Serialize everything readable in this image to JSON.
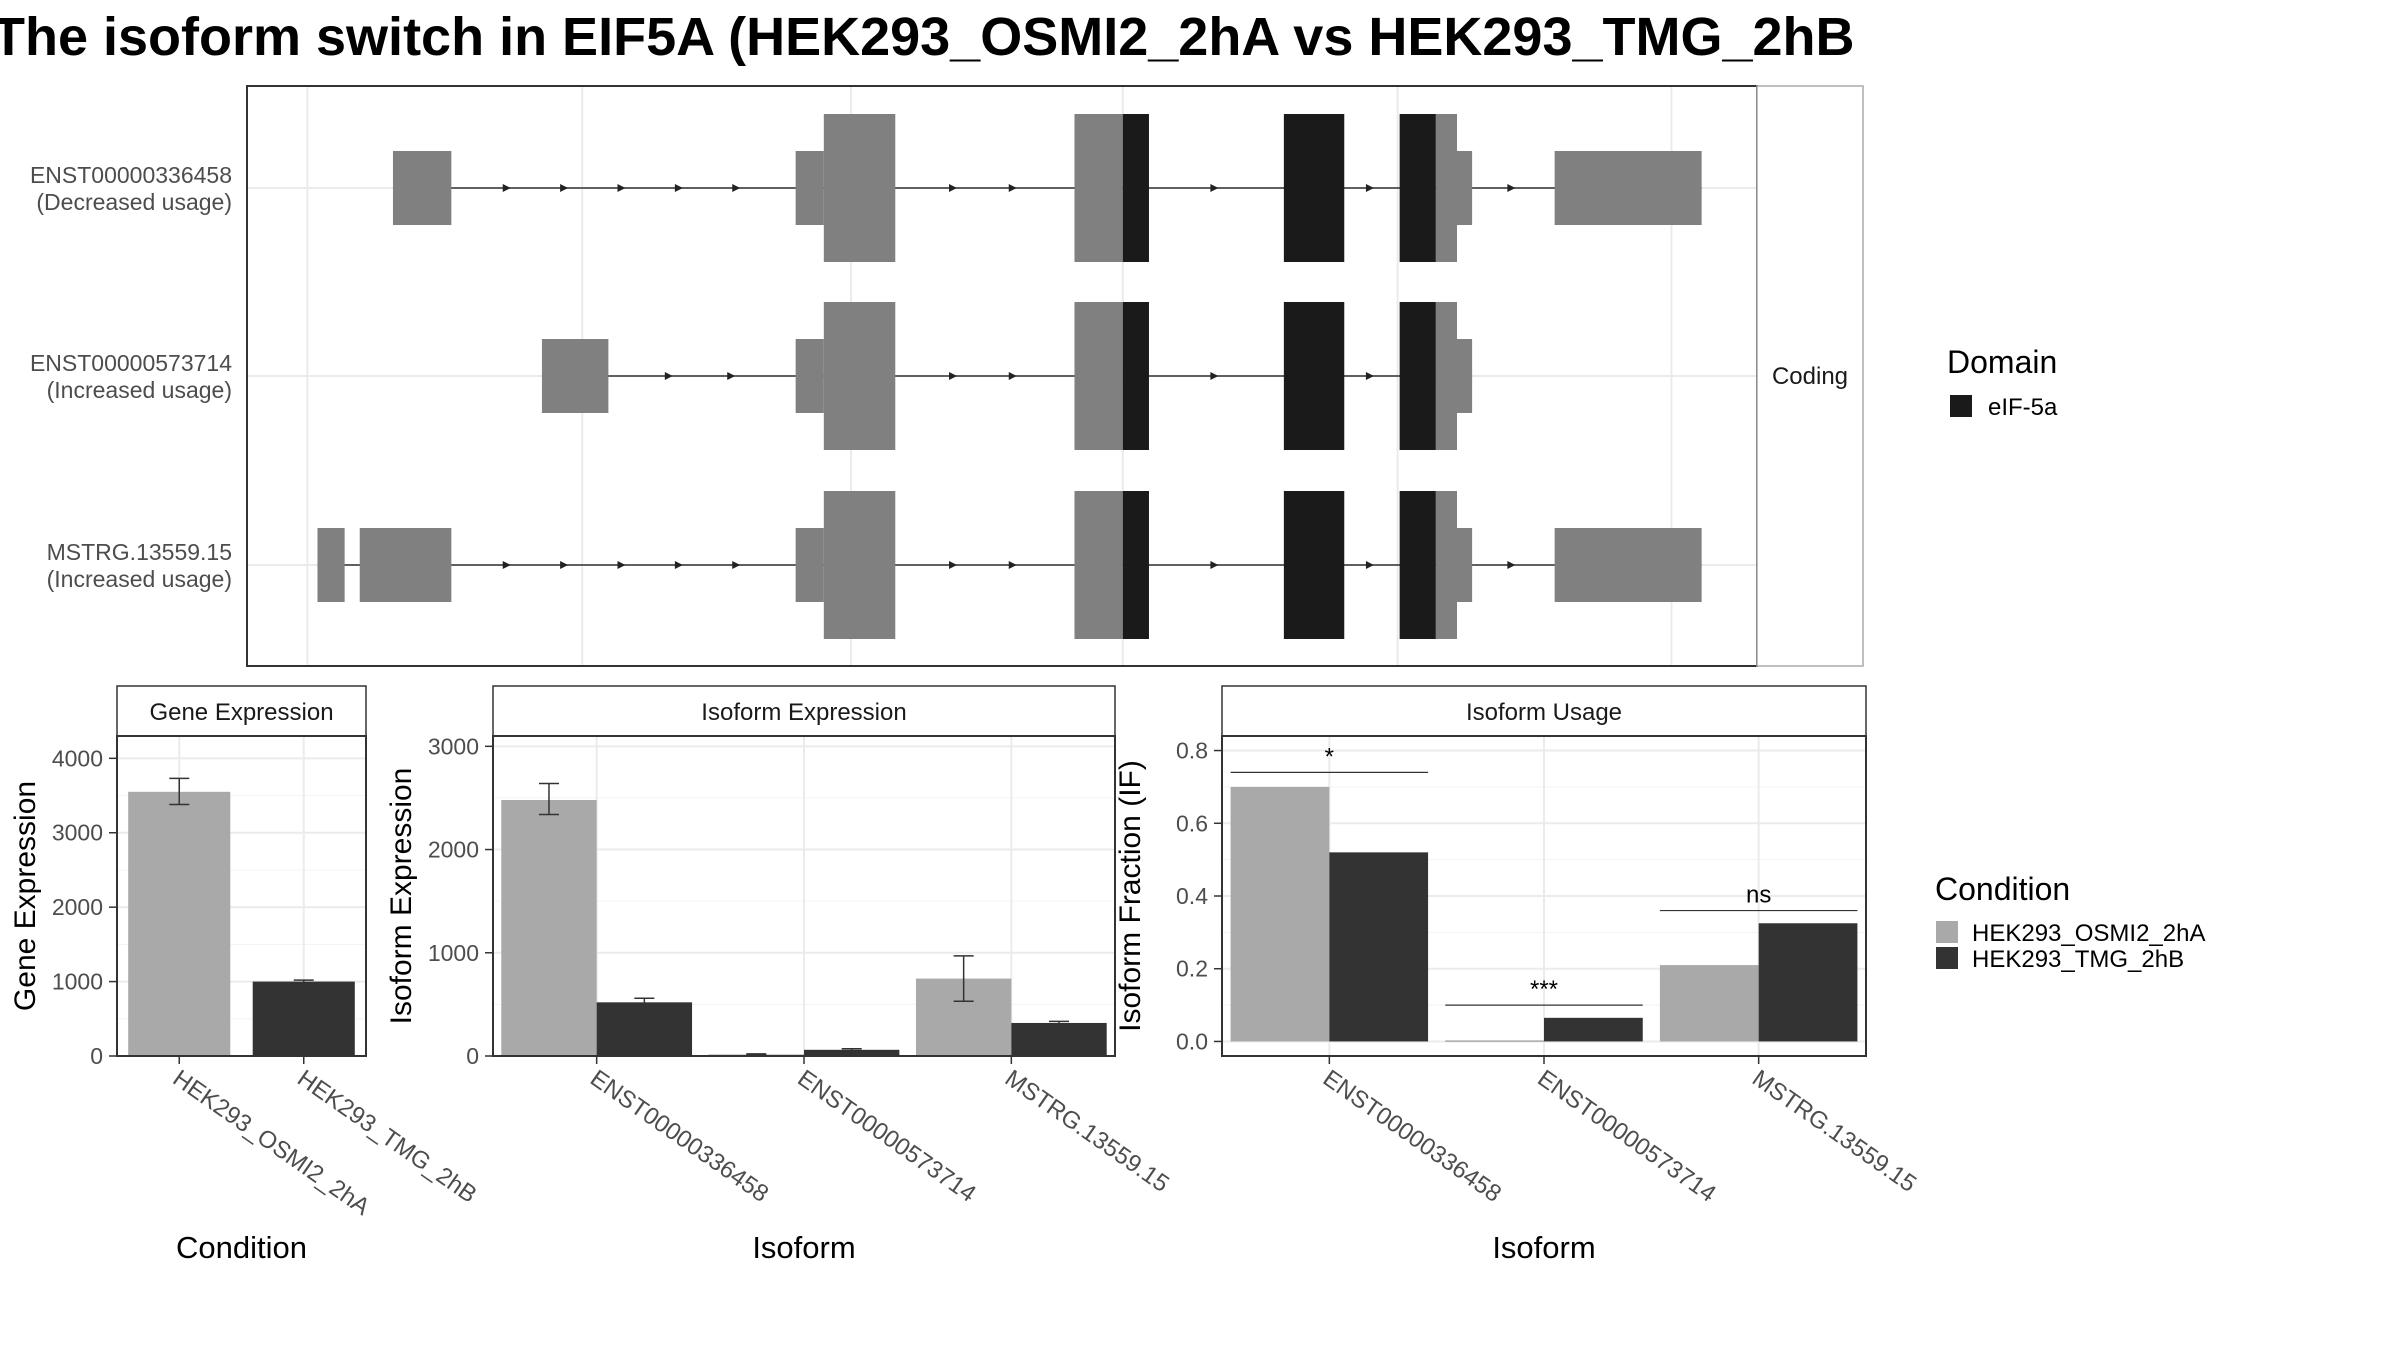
{
  "title": "The isoform switch in EIF5A (HEK293_OSMI2_2hA vs HEK293_TMG_2hB",
  "colors": {
    "background": "#ffffff",
    "panel_border": "#333333",
    "facet_strip_border": "#aaaaaa",
    "gridline": "#ebebeb",
    "exon": "#808080",
    "domain_eif5a": "#1a1a1a",
    "condition_a": "#a9a9a9",
    "condition_b": "#333333",
    "text_dark": "#000000",
    "text_axis": "#4d4d4d"
  },
  "chart_data": [
    {
      "type": "gene_structure",
      "facet_label": "Coding",
      "transcripts": [
        {
          "id": "ENST00000336458",
          "label": "(Decreased usage)",
          "intron_span": [
            145,
            1445
          ],
          "exons": [
            {
              "start": 145,
              "end": 203,
              "kind": "utr"
            },
            {
              "start": 545,
              "end": 573,
              "kind": "utr"
            },
            {
              "start": 573,
              "end": 644,
              "kind": "cds"
            },
            {
              "start": 822,
              "end": 870,
              "kind": "cds"
            },
            {
              "start": 870,
              "end": 896,
              "kind": "domain"
            },
            {
              "start": 1030,
              "end": 1090,
              "kind": "domain"
            },
            {
              "start": 1145,
              "end": 1181,
              "kind": "domain"
            },
            {
              "start": 1181,
              "end": 1202,
              "kind": "cds"
            },
            {
              "start": 1202,
              "end": 1217,
              "kind": "utr"
            },
            {
              "start": 1299,
              "end": 1445,
              "kind": "utr"
            }
          ]
        },
        {
          "id": "ENST00000573714",
          "label": "(Increased usage)",
          "intron_span": [
            293,
            1217
          ],
          "exons": [
            {
              "start": 293,
              "end": 359,
              "kind": "utr"
            },
            {
              "start": 545,
              "end": 573,
              "kind": "utr"
            },
            {
              "start": 573,
              "end": 644,
              "kind": "cds"
            },
            {
              "start": 822,
              "end": 870,
              "kind": "cds"
            },
            {
              "start": 870,
              "end": 896,
              "kind": "domain"
            },
            {
              "start": 1030,
              "end": 1090,
              "kind": "domain"
            },
            {
              "start": 1145,
              "end": 1181,
              "kind": "domain"
            },
            {
              "start": 1181,
              "end": 1202,
              "kind": "cds"
            },
            {
              "start": 1202,
              "end": 1217,
              "kind": "utr"
            }
          ]
        },
        {
          "id": "MSTRG.13559.15",
          "label": "(Increased usage)",
          "intron_span": [
            70,
            1445
          ],
          "exons": [
            {
              "start": 70,
              "end": 97,
              "kind": "utr"
            },
            {
              "start": 112,
              "end": 203,
              "kind": "utr"
            },
            {
              "start": 545,
              "end": 573,
              "kind": "utr"
            },
            {
              "start": 573,
              "end": 644,
              "kind": "cds"
            },
            {
              "start": 822,
              "end": 870,
              "kind": "cds"
            },
            {
              "start": 870,
              "end": 896,
              "kind": "domain"
            },
            {
              "start": 1030,
              "end": 1090,
              "kind": "domain"
            },
            {
              "start": 1145,
              "end": 1181,
              "kind": "domain"
            },
            {
              "start": 1181,
              "end": 1202,
              "kind": "cds"
            },
            {
              "start": 1202,
              "end": 1217,
              "kind": "utr"
            },
            {
              "start": 1299,
              "end": 1445,
              "kind": "utr"
            }
          ]
        }
      ],
      "legend": {
        "title": "Domain",
        "items": [
          "eIF-5a"
        ]
      }
    },
    {
      "type": "bar",
      "panel_title": "Gene Expression",
      "xlabel": "Condition",
      "ylabel": "Gene Expression",
      "ylim": [
        0,
        4300
      ],
      "yticks": [
        0,
        1000,
        2000,
        3000,
        4000
      ],
      "categories": [
        "HEK293_OSMI2_2hA",
        "HEK293_TMG_2hB"
      ],
      "values": [
        3550,
        1000
      ],
      "errors": [
        [
          3380,
          3730
        ],
        [
          980,
          1020
        ]
      ]
    },
    {
      "type": "bar",
      "panel_title": "Isoform Expression",
      "xlabel": "Isoform",
      "ylabel": "Isoform Expression",
      "ylim": [
        0,
        3100
      ],
      "yticks": [
        0,
        1000,
        2000,
        3000
      ],
      "categories": [
        "ENST00000336458",
        "ENST00000573714",
        "MSTRG.13559.15"
      ],
      "series": [
        {
          "name": "HEK293_OSMI2_2hA",
          "values": [
            2480,
            15,
            750
          ],
          "errors": [
            [
              2340,
              2640
            ],
            [
              10,
              20
            ],
            [
              530,
              970
            ]
          ]
        },
        {
          "name": "HEK293_TMG_2hB",
          "values": [
            520,
            60,
            320
          ],
          "errors": [
            [
              480,
              560
            ],
            [
              50,
              70
            ],
            [
              305,
              335
            ]
          ]
        }
      ]
    },
    {
      "type": "bar",
      "panel_title": "Isoform Usage",
      "xlabel": "Isoform",
      "ylabel": "Isoform Fraction (IF)",
      "ylim": [
        -0.04,
        0.84
      ],
      "yticks": [
        0.0,
        0.2,
        0.4,
        0.6,
        0.8
      ],
      "ytick_labels": [
        "0.0",
        "0.2",
        "0.4",
        "0.6",
        "0.8"
      ],
      "categories": [
        "ENST00000336458",
        "ENST00000573714",
        "MSTRG.13559.15"
      ],
      "series": [
        {
          "name": "HEK293_OSMI2_2hA",
          "values": [
            0.7,
            0.003,
            0.21
          ]
        },
        {
          "name": "HEK293_TMG_2hB",
          "values": [
            0.52,
            0.065,
            0.325
          ]
        }
      ],
      "significance": [
        {
          "label": "*",
          "y": 0.74
        },
        {
          "label": "***",
          "y": 0.1
        },
        {
          "label": "ns",
          "y": 0.36
        }
      ]
    }
  ],
  "condition_legend": {
    "title": "Condition",
    "items": [
      "HEK293_OSMI2_2hA",
      "HEK293_TMG_2hB"
    ]
  }
}
